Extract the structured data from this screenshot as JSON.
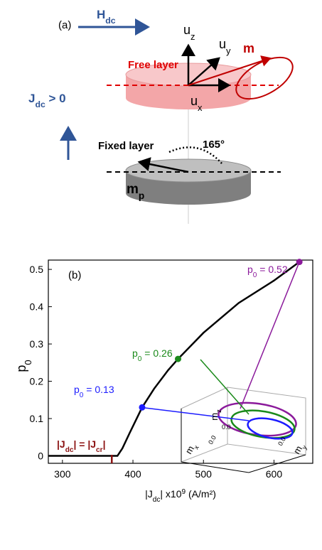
{
  "diagram": {
    "panel_label": "(a)",
    "field_label": [
      {
        "text": "H",
        "style": "normal"
      },
      {
        "text": "dc",
        "style": "sub"
      }
    ],
    "free_layer": "Free layer",
    "uz": [
      {
        "text": "u",
        "style": "normal"
      },
      {
        "text": "z",
        "style": "sub"
      }
    ],
    "uy": [
      {
        "text": "u",
        "style": "normal"
      },
      {
        "text": "y",
        "style": "sub"
      }
    ],
    "ux": [
      {
        "text": "u",
        "style": "normal"
      },
      {
        "text": "x",
        "style": "sub"
      }
    ],
    "m": "m",
    "current_label": [
      {
        "text": "J",
        "style": "normal"
      },
      {
        "text": "dc",
        "style": "sub"
      },
      {
        "text": " > 0",
        "style": "normal"
      }
    ],
    "fixed_layer": "Fixed layer",
    "angle": "165°",
    "mp": [
      {
        "text": "m",
        "style": "normal"
      },
      {
        "text": "p",
        "style": "sub"
      }
    ]
  },
  "chart_data": {
    "type": "line",
    "panel_label": "(b)",
    "xlabel": [
      {
        "text": "|J",
        "style": "normal"
      },
      {
        "text": "dc",
        "style": "sub"
      },
      {
        "text": "| x10",
        "style": "normal"
      },
      {
        "text": "9",
        "style": "sup"
      },
      {
        "text": " (A/m²)",
        "style": "normal"
      }
    ],
    "ylabel": [
      {
        "text": "p",
        "style": "normal"
      },
      {
        "text": "0",
        "style": "sub"
      }
    ],
    "xlim": [
      280,
      655
    ],
    "ylim": [
      -0.02,
      0.525
    ],
    "xticks": [
      300,
      400,
      500,
      600
    ],
    "yticks": [
      0,
      0.1,
      0.2,
      0.3,
      0.4,
      0.5
    ],
    "series": [
      {
        "color": "#000000",
        "x": [
          280,
          370,
          378,
          385,
          395,
          413,
          430,
          450,
          464,
          500,
          550,
          600,
          636
        ],
        "values": [
          0,
          0,
          0,
          0.02,
          0.06,
          0.13,
          0.18,
          0.23,
          0.26,
          0.33,
          0.41,
          0.47,
          0.52
        ]
      }
    ],
    "markers": [
      {
        "x": 413,
        "y": 0.13,
        "color": "#1c1cff",
        "label": [
          {
            "text": "p",
            "style": "normal"
          },
          {
            "text": "0",
            "style": "sub"
          },
          {
            "text": " = 0.13",
            "style": "normal"
          }
        ]
      },
      {
        "x": 464,
        "y": 0.26,
        "color": "#1a8a1a",
        "label": [
          {
            "text": "p",
            "style": "normal"
          },
          {
            "text": "0",
            "style": "sub"
          },
          {
            "text": " = 0.26",
            "style": "normal"
          }
        ]
      },
      {
        "x": 636,
        "y": 0.52,
        "color": "#8b1a9b",
        "label": [
          {
            "text": "p",
            "style": "normal"
          },
          {
            "text": "0",
            "style": "sub"
          },
          {
            "text": " = 0.52",
            "style": "normal"
          }
        ]
      }
    ],
    "critical": {
      "x": 370,
      "color": "#8b1010",
      "label": [
        {
          "text": "|J",
          "style": "normal"
        },
        {
          "text": "dc",
          "style": "sub"
        },
        {
          "text": "| = |J",
          "style": "normal"
        },
        {
          "text": "cr",
          "style": "sub"
        },
        {
          "text": "|",
          "style": "normal"
        }
      ]
    },
    "inset": {
      "mz": [
        {
          "text": "m",
          "style": "normal"
        },
        {
          "text": "z",
          "style": "sub"
        }
      ],
      "mx": [
        {
          "text": "m",
          "style": "normal"
        },
        {
          "text": "x",
          "style": "sub"
        }
      ],
      "my": [
        {
          "text": "m",
          "style": "normal"
        },
        {
          "text": "y",
          "style": "sub"
        }
      ],
      "mz_tick": "0.0",
      "mx_tick": "0.0",
      "my_tick": "0.0"
    }
  }
}
